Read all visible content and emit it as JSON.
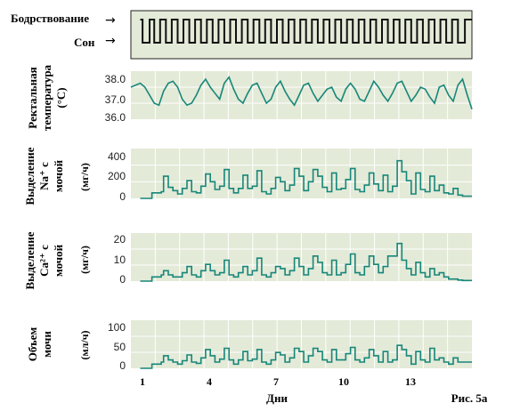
{
  "figure": {
    "caption": "Рис. 5а",
    "xlabel": "Дни",
    "xticks": [
      "1",
      "4",
      "7",
      "10",
      "13"
    ],
    "colors": {
      "panel_bg": "#e3ead7",
      "grid": "#ffffff",
      "line": "#17867a",
      "sleep_line": "#111111",
      "frame": "#222222"
    }
  },
  "chart_data": [
    {
      "type": "line",
      "id": "sleep",
      "step": true,
      "labels": {
        "awake": "Бодрствование",
        "sleep": "Сон"
      },
      "x": [
        1.0,
        1.1,
        1.1,
        1.4,
        1.4,
        1.6,
        1.6,
        1.85,
        1.85,
        2.1,
        2.1,
        2.35,
        2.35,
        2.6,
        2.6,
        2.85,
        2.85,
        3.1,
        3.1,
        3.35,
        3.35,
        3.6,
        3.6,
        3.85,
        3.85,
        4.1,
        4.1,
        4.35,
        4.35,
        4.6,
        4.6,
        4.85,
        4.85,
        5.1,
        5.1,
        5.35,
        5.35,
        5.6,
        5.6,
        5.85,
        5.85,
        6.1,
        6.1,
        6.35,
        6.35,
        6.6,
        6.6,
        6.85,
        6.85,
        7.1,
        7.1,
        7.35,
        7.35,
        7.6,
        7.6,
        7.85,
        7.85,
        8.1,
        8.1,
        8.35,
        8.35,
        8.6,
        8.6,
        8.85,
        8.85,
        9.1,
        9.1,
        9.35,
        9.35,
        9.6,
        9.6,
        9.85,
        9.85,
        10.1,
        10.1,
        10.35,
        10.35,
        10.6,
        10.6,
        10.85,
        10.85,
        11.1,
        11.1,
        11.35,
        11.35,
        11.6,
        11.6,
        11.85,
        11.85,
        12.1,
        12.1,
        12.35,
        12.35,
        12.6,
        12.6,
        12.85,
        12.85,
        13.1,
        13.1,
        13.35,
        13.35,
        13.6,
        13.6,
        13.85,
        13.85,
        14.1,
        14.1,
        14.35,
        14.35,
        14.6,
        14.6,
        14.9,
        14.9,
        15.2
      ],
      "values": [
        1,
        1,
        0,
        0,
        1,
        1,
        0,
        0,
        1,
        1,
        0,
        0,
        1,
        1,
        0,
        0,
        1,
        1,
        0,
        0,
        1,
        1,
        0,
        0,
        1,
        1,
        0,
        0,
        1,
        1,
        0,
        0,
        1,
        1,
        0,
        0,
        1,
        1,
        0,
        0,
        1,
        1,
        0,
        0,
        1,
        1,
        0,
        0,
        1,
        1,
        0,
        0,
        1,
        1,
        0,
        0,
        1,
        1,
        0,
        0,
        1,
        1,
        0,
        0,
        1,
        1,
        0,
        0,
        1,
        1,
        0,
        0,
        1,
        1,
        0,
        0,
        1,
        1,
        0,
        0,
        1,
        1,
        0,
        0,
        1,
        1,
        0,
        0,
        1,
        1,
        0,
        0,
        1,
        1,
        0,
        0,
        1,
        1,
        0,
        0,
        1,
        1,
        0,
        0,
        1,
        1,
        0,
        0,
        1,
        1,
        0,
        0,
        1,
        1
      ],
      "ylim": [
        0,
        1
      ]
    },
    {
      "type": "line",
      "id": "temp",
      "ylabel": [
        "Ректальная",
        "температура",
        "(°C)"
      ],
      "yticks": [
        "38.0",
        "37.0",
        "36.0"
      ],
      "ylim": [
        36.0,
        38.4
      ],
      "x": [
        0.6,
        0.8,
        1.0,
        1.2,
        1.4,
        1.6,
        1.8,
        2.0,
        2.2,
        2.4,
        2.6,
        2.8,
        3.0,
        3.2,
        3.4,
        3.6,
        3.8,
        4.0,
        4.2,
        4.4,
        4.6,
        4.8,
        5.0,
        5.2,
        5.4,
        5.6,
        5.8,
        6.0,
        6.2,
        6.4,
        6.6,
        6.8,
        7.0,
        7.2,
        7.4,
        7.6,
        7.8,
        8.0,
        8.2,
        8.4,
        8.6,
        8.8,
        9.0,
        9.2,
        9.4,
        9.6,
        9.8,
        10.0,
        10.2,
        10.4,
        10.6,
        10.8,
        11.0,
        11.2,
        11.4,
        11.6,
        11.8,
        12.0,
        12.2,
        12.4,
        12.6,
        12.8,
        13.0,
        13.2,
        13.4,
        13.6,
        13.8,
        14.0,
        14.2,
        14.4,
        14.6,
        14.8,
        15.0,
        15.2
      ],
      "values": [
        37.6,
        37.7,
        37.8,
        37.6,
        37.2,
        36.8,
        36.7,
        37.4,
        37.8,
        37.9,
        37.6,
        37.0,
        36.7,
        36.8,
        37.2,
        37.7,
        38.0,
        37.6,
        37.3,
        37.0,
        37.8,
        38.1,
        37.5,
        37.0,
        36.8,
        37.3,
        37.7,
        37.8,
        37.3,
        36.8,
        37.0,
        37.6,
        37.9,
        37.4,
        37.0,
        36.7,
        37.2,
        37.7,
        37.8,
        37.3,
        36.9,
        37.2,
        37.5,
        37.6,
        37.1,
        36.9,
        37.5,
        37.8,
        37.5,
        37.0,
        36.9,
        37.4,
        37.9,
        37.6,
        37.2,
        36.9,
        37.3,
        37.8,
        37.9,
        37.4,
        36.9,
        37.2,
        37.6,
        37.5,
        37.1,
        36.8,
        37.6,
        37.7,
        37.2,
        36.9,
        37.7,
        38.0,
        37.2,
        36.5
      ]
    },
    {
      "type": "line",
      "id": "na",
      "step": true,
      "ylabel": [
        "Выделение",
        "Na⁺ с",
        "мочой"
      ],
      "unit": "(мг/ч)",
      "yticks": [
        "400",
        "200",
        "0"
      ],
      "ylim": [
        0,
        450
      ],
      "x": [
        1.0,
        1.5,
        1.7,
        1.9,
        2.0,
        2.2,
        2.4,
        2.6,
        2.8,
        3.0,
        3.2,
        3.4,
        3.6,
        3.8,
        4.0,
        4.2,
        4.4,
        4.6,
        4.8,
        5.0,
        5.2,
        5.4,
        5.6,
        5.8,
        6.0,
        6.2,
        6.4,
        6.6,
        6.8,
        7.0,
        7.2,
        7.4,
        7.6,
        7.8,
        8.0,
        8.2,
        8.4,
        8.6,
        8.8,
        9.0,
        9.2,
        9.4,
        9.6,
        9.8,
        10.0,
        10.2,
        10.4,
        10.6,
        10.8,
        11.0,
        11.2,
        11.4,
        11.6,
        11.8,
        12.0,
        12.2,
        12.4,
        12.6,
        12.8,
        13.0,
        13.2,
        13.4,
        13.6,
        13.8,
        14.0,
        14.2,
        14.4,
        14.6,
        14.8,
        15.0,
        15.2
      ],
      "values": [
        0,
        50,
        50,
        60,
        200,
        100,
        70,
        40,
        90,
        160,
        60,
        50,
        110,
        220,
        150,
        80,
        110,
        260,
        90,
        50,
        90,
        210,
        90,
        110,
        250,
        60,
        40,
        90,
        190,
        150,
        70,
        120,
        270,
        200,
        70,
        150,
        260,
        200,
        100,
        60,
        230,
        80,
        90,
        170,
        270,
        80,
        60,
        120,
        230,
        130,
        70,
        210,
        60,
        110,
        340,
        240,
        160,
        40,
        230,
        80,
        60,
        200,
        70,
        120,
        50,
        40,
        90,
        30,
        20,
        20,
        20
      ]
    },
    {
      "type": "line",
      "id": "ca",
      "step": true,
      "ylabel": [
        "Выделение",
        "Ca²⁺ с",
        "мочой"
      ],
      "unit": "(мг/ч)",
      "yticks": [
        "20",
        "10",
        "0"
      ],
      "ylim": [
        0,
        23
      ],
      "x": [
        1.0,
        1.5,
        1.7,
        1.9,
        2.0,
        2.2,
        2.4,
        2.6,
        2.8,
        3.0,
        3.2,
        3.4,
        3.6,
        3.8,
        4.0,
        4.2,
        4.4,
        4.6,
        4.8,
        5.0,
        5.2,
        5.4,
        5.6,
        5.8,
        6.0,
        6.2,
        6.4,
        6.6,
        6.8,
        7.0,
        7.2,
        7.4,
        7.6,
        7.8,
        8.0,
        8.2,
        8.4,
        8.6,
        8.8,
        9.0,
        9.2,
        9.4,
        9.6,
        9.8,
        10.0,
        10.2,
        10.4,
        10.6,
        10.8,
        11.0,
        11.2,
        11.4,
        11.6,
        11.8,
        12.0,
        12.2,
        12.4,
        12.6,
        12.8,
        13.0,
        13.2,
        13.4,
        13.6,
        13.8,
        14.0,
        14.2,
        14.4,
        14.6,
        14.8,
        15.0,
        15.2
      ],
      "values": [
        0,
        2,
        2,
        3,
        5,
        3,
        2,
        2,
        4,
        7,
        3,
        2,
        5,
        8,
        5,
        3,
        4,
        10,
        3,
        2,
        4,
        7,
        3,
        5,
        11,
        3,
        2,
        4,
        7,
        6,
        3,
        5,
        11,
        7,
        3,
        6,
        12,
        9,
        4,
        3,
        10,
        3,
        4,
        8,
        13,
        4,
        3,
        7,
        12,
        8,
        4,
        7,
        12,
        12,
        18,
        10,
        6,
        3,
        9,
        4,
        2,
        6,
        3,
        4,
        2,
        1,
        1,
        0.5,
        0.3,
        0.3,
        0.3
      ]
    },
    {
      "type": "line",
      "id": "vol",
      "step": true,
      "ylabel": [
        "Объем",
        "мочи"
      ],
      "unit": "(мл/ч)",
      "yticks": [
        "100",
        "50",
        "0"
      ],
      "ylim": [
        0,
        115
      ],
      "x": [
        1.0,
        1.5,
        1.7,
        1.9,
        2.0,
        2.2,
        2.4,
        2.6,
        2.8,
        3.0,
        3.2,
        3.4,
        3.6,
        3.8,
        4.0,
        4.2,
        4.4,
        4.6,
        4.8,
        5.0,
        5.2,
        5.4,
        5.6,
        5.8,
        6.0,
        6.2,
        6.4,
        6.6,
        6.8,
        7.0,
        7.2,
        7.4,
        7.6,
        7.8,
        8.0,
        8.2,
        8.4,
        8.6,
        8.8,
        9.0,
        9.2,
        9.4,
        9.6,
        9.8,
        10.0,
        10.2,
        10.4,
        10.6,
        10.8,
        11.0,
        11.2,
        11.4,
        11.6,
        11.8,
        12.0,
        12.2,
        12.4,
        12.6,
        12.8,
        13.0,
        13.2,
        13.4,
        13.6,
        13.8,
        14.0,
        14.2,
        14.4,
        14.6,
        14.8,
        15.0,
        15.2
      ],
      "values": [
        0,
        10,
        10,
        15,
        30,
        20,
        15,
        10,
        18,
        32,
        15,
        12,
        25,
        45,
        30,
        15,
        22,
        48,
        20,
        10,
        20,
        40,
        18,
        22,
        45,
        15,
        10,
        20,
        38,
        32,
        15,
        25,
        48,
        40,
        15,
        30,
        48,
        40,
        20,
        15,
        45,
        20,
        20,
        35,
        50,
        20,
        15,
        25,
        45,
        30,
        15,
        40,
        15,
        20,
        55,
        45,
        30,
        10,
        40,
        20,
        15,
        48,
        20,
        25,
        15,
        10,
        25,
        15,
        15,
        15,
        15
      ]
    }
  ]
}
